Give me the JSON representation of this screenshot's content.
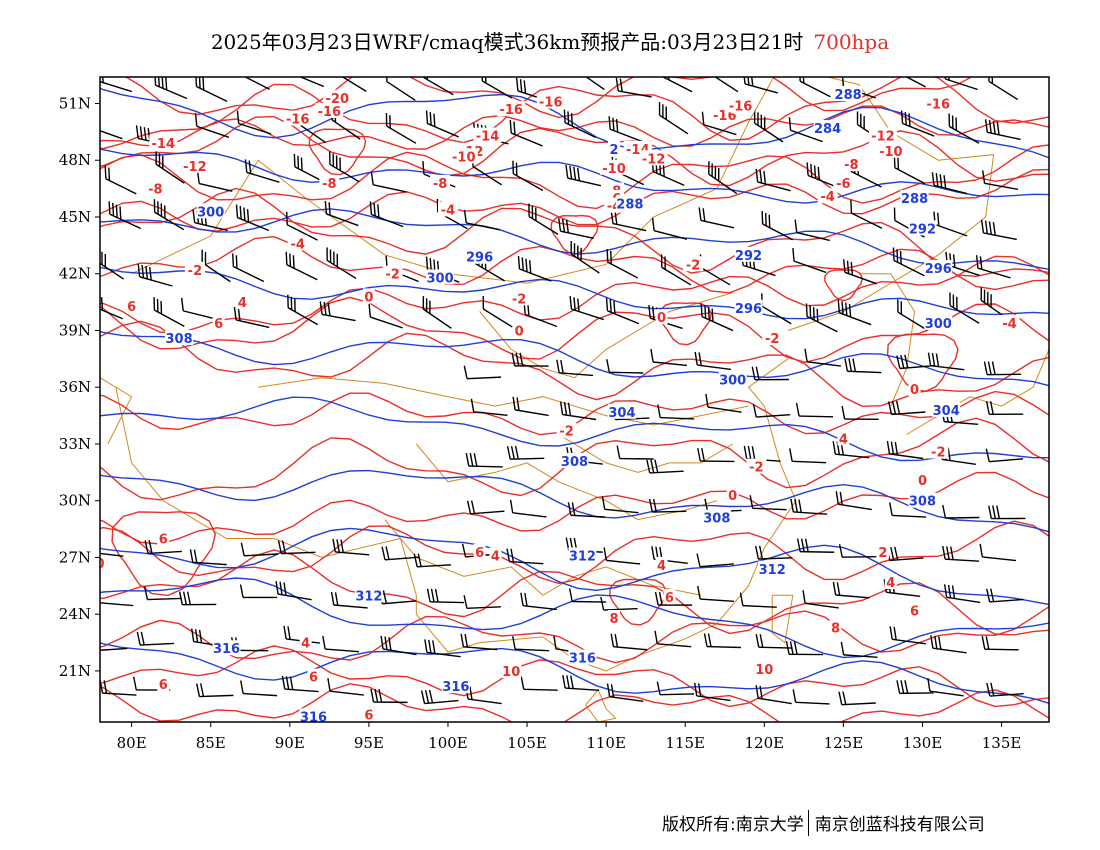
{
  "title": {
    "text": "2025年03月23日WRF/cmaq模式36km预报产品:03月23日21时",
    "level": "700hpa",
    "level_color": "#e8302a"
  },
  "axes": {
    "lat_labels": [
      "51N",
      "48N",
      "45N",
      "42N",
      "39N",
      "36N",
      "33N",
      "30N",
      "27N",
      "24N",
      "21N"
    ],
    "lat_values": [
      51,
      48,
      45,
      42,
      39,
      36,
      33,
      30,
      27,
      24,
      21
    ],
    "lon_labels": [
      "80E",
      "85E",
      "90E",
      "95E",
      "100E",
      "105E",
      "110E",
      "115E",
      "120E",
      "125E",
      "130E",
      "135E"
    ],
    "lon_values": [
      80,
      85,
      90,
      95,
      100,
      105,
      110,
      115,
      120,
      125,
      130,
      135
    ],
    "lon_range": [
      78,
      138
    ],
    "lat_range": [
      18.3,
      52.4
    ]
  },
  "colors": {
    "temperature": "#e8302a",
    "height": "#1f3fd6",
    "border": "#d2891f",
    "wind": "#000000"
  },
  "temperature_labels": [
    {
      "text": "-20",
      "lon": 93,
      "lat": 51.3
    },
    {
      "text": "-16",
      "lon": 90.5,
      "lat": 50.2
    },
    {
      "text": "-16",
      "lon": 92.5,
      "lat": 50.6
    },
    {
      "text": "-16",
      "lon": 104,
      "lat": 50.7
    },
    {
      "text": "-16",
      "lon": 106.5,
      "lat": 51.1
    },
    {
      "text": "-16",
      "lon": 117.5,
      "lat": 50.4
    },
    {
      "text": "-16",
      "lon": 118.5,
      "lat": 50.9
    },
    {
      "text": "-16",
      "lon": 131,
      "lat": 51
    },
    {
      "text": "-14",
      "lon": 82,
      "lat": 48.9
    },
    {
      "text": "-14",
      "lon": 112,
      "lat": 48.6
    },
    {
      "text": "-14",
      "lon": 102.5,
      "lat": 49.3
    },
    {
      "text": "-12",
      "lon": 84,
      "lat": 47.7
    },
    {
      "text": "-12",
      "lon": 101.5,
      "lat": 48.5
    },
    {
      "text": "-12",
      "lon": 113,
      "lat": 48.1
    },
    {
      "text": "-12",
      "lon": 127.5,
      "lat": 49.3
    },
    {
      "text": "-10",
      "lon": 101,
      "lat": 48.2
    },
    {
      "text": "-10",
      "lon": 110.5,
      "lat": 47.6
    },
    {
      "text": "-10",
      "lon": 128,
      "lat": 48.5
    },
    {
      "text": "-8",
      "lon": 81.5,
      "lat": 46.5
    },
    {
      "text": "-8",
      "lon": 92.5,
      "lat": 46.8
    },
    {
      "text": "-8",
      "lon": 99.5,
      "lat": 46.8
    },
    {
      "text": "-8",
      "lon": 110.5,
      "lat": 46.4
    },
    {
      "text": "-8",
      "lon": 125.5,
      "lat": 47.8
    },
    {
      "text": "-6",
      "lon": 110.5,
      "lat": 46
    },
    {
      "text": "-6",
      "lon": 125,
      "lat": 46.8
    },
    {
      "text": "-4",
      "lon": 100,
      "lat": 45.4
    },
    {
      "text": "-4",
      "lon": 110.5,
      "lat": 45.6
    },
    {
      "text": "-4",
      "lon": 124,
      "lat": 46.1
    },
    {
      "text": "-4",
      "lon": 90.5,
      "lat": 43.6
    },
    {
      "text": "-4",
      "lon": 135.5,
      "lat": 39.4
    },
    {
      "text": "-2",
      "lon": 84,
      "lat": 42.2
    },
    {
      "text": "-2",
      "lon": 96.5,
      "lat": 42
    },
    {
      "text": "-2",
      "lon": 115.5,
      "lat": 42.5
    },
    {
      "text": "-2",
      "lon": 120.5,
      "lat": 38.6
    },
    {
      "text": "-2",
      "lon": 107.5,
      "lat": 33.7
    },
    {
      "text": "-2",
      "lon": 119.5,
      "lat": 31.8
    },
    {
      "text": "-2",
      "lon": 131,
      "lat": 32.6
    },
    {
      "text": "-2",
      "lon": 104.5,
      "lat": 40.7
    },
    {
      "text": "0",
      "lon": 95,
      "lat": 40.8
    },
    {
      "text": "0",
      "lon": 104.5,
      "lat": 39
    },
    {
      "text": "0",
      "lon": 113.5,
      "lat": 39.7
    },
    {
      "text": "0",
      "lon": 118,
      "lat": 30.3
    },
    {
      "text": "0",
      "lon": 130,
      "lat": 31.1
    },
    {
      "text": "0",
      "lon": 129.5,
      "lat": 35.9
    },
    {
      "text": "0",
      "lon": 78,
      "lat": 26.7
    },
    {
      "text": "4",
      "lon": 87,
      "lat": 40.5
    },
    {
      "text": "4",
      "lon": 103,
      "lat": 27.1
    },
    {
      "text": "4",
      "lon": 113.5,
      "lat": 26.6
    },
    {
      "text": "4",
      "lon": 125,
      "lat": 33.3
    },
    {
      "text": "4",
      "lon": 128,
      "lat": 25.7
    },
    {
      "text": "4",
      "lon": 91,
      "lat": 22.5
    },
    {
      "text": "2",
      "lon": 127.5,
      "lat": 27.3
    },
    {
      "text": "6",
      "lon": 80,
      "lat": 40.3
    },
    {
      "text": "6",
      "lon": 85.5,
      "lat": 39.4
    },
    {
      "text": "6",
      "lon": 82,
      "lat": 28
    },
    {
      "text": "6",
      "lon": 114,
      "lat": 24.9
    },
    {
      "text": "6",
      "lon": 129.5,
      "lat": 24.2
    },
    {
      "text": "6",
      "lon": 91.5,
      "lat": 20.7
    },
    {
      "text": "6",
      "lon": 82,
      "lat": 20.3
    },
    {
      "text": "6",
      "lon": 95,
      "lat": 18.7
    },
    {
      "text": "6",
      "lon": 102,
      "lat": 27.3
    },
    {
      "text": "8",
      "lon": 110.5,
      "lat": 23.8
    },
    {
      "text": "8",
      "lon": 124.5,
      "lat": 23.3
    },
    {
      "text": "10",
      "lon": 104,
      "lat": 21
    },
    {
      "text": "10",
      "lon": 120,
      "lat": 21.1
    }
  ],
  "height_labels": [
    {
      "text": "288",
      "lon": 125.3,
      "lat": 51.5
    },
    {
      "text": "284",
      "lon": 124,
      "lat": 49.7
    },
    {
      "text": "2",
      "lon": 110.5,
      "lat": 48.6
    },
    {
      "text": "288",
      "lon": 111.5,
      "lat": 45.7
    },
    {
      "text": "288",
      "lon": 129.5,
      "lat": 46
    },
    {
      "text": "300",
      "lon": 85,
      "lat": 45.3
    },
    {
      "text": "292",
      "lon": 130,
      "lat": 44.4
    },
    {
      "text": "296",
      "lon": 102,
      "lat": 42.9
    },
    {
      "text": "292",
      "lon": 119,
      "lat": 43
    },
    {
      "text": "296",
      "lon": 131,
      "lat": 42.3
    },
    {
      "text": "300",
      "lon": 99.5,
      "lat": 41.8
    },
    {
      "text": "296",
      "lon": 119,
      "lat": 40.2
    },
    {
      "text": "300",
      "lon": 131,
      "lat": 39.4
    },
    {
      "text": "308",
      "lon": 83,
      "lat": 38.6
    },
    {
      "text": "300",
      "lon": 118,
      "lat": 36.4
    },
    {
      "text": "304",
      "lon": 111,
      "lat": 34.7
    },
    {
      "text": "304",
      "lon": 131.5,
      "lat": 34.8
    },
    {
      "text": "308",
      "lon": 108,
      "lat": 32.1
    },
    {
      "text": "308",
      "lon": 117,
      "lat": 29.1
    },
    {
      "text": "308",
      "lon": 130,
      "lat": 30
    },
    {
      "text": "312",
      "lon": 108.5,
      "lat": 27.1
    },
    {
      "text": "312",
      "lon": 120.5,
      "lat": 26.4
    },
    {
      "text": "312",
      "lon": 95,
      "lat": 25
    },
    {
      "text": "316",
      "lon": 86,
      "lat": 22.2
    },
    {
      "text": "316",
      "lon": 108.5,
      "lat": 21.7
    },
    {
      "text": "316",
      "lon": 100.5,
      "lat": 20.2
    },
    {
      "text": "316",
      "lon": 91.5,
      "lat": 18.6
    }
  ],
  "footer": {
    "left": "版权所有:南京大学",
    "right": "南京创蓝科技有限公司"
  }
}
